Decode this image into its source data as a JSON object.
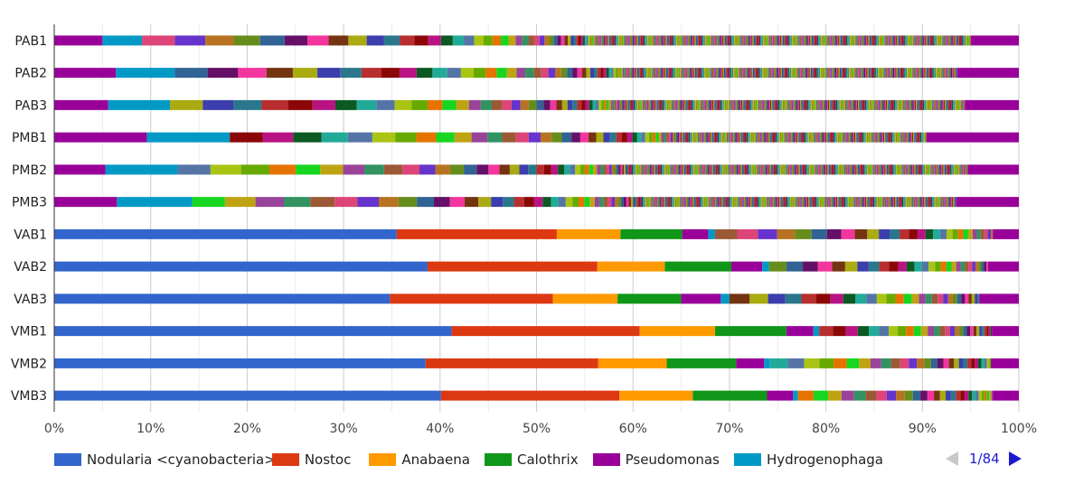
{
  "chart_data": {
    "type": "bar",
    "orientation": "horizontal",
    "stacked": true,
    "normalized": true,
    "categories": [
      "PAB1",
      "PAB2",
      "PAB3",
      "PMB1",
      "PMB2",
      "PMB3",
      "VAB1",
      "VAB2",
      "VAB3",
      "VMB1",
      "VMB2",
      "VMB3"
    ],
    "x_ticks": [
      "0%",
      "10%",
      "20%",
      "30%",
      "40%",
      "50%",
      "60%",
      "70%",
      "80%",
      "90%",
      "100%"
    ],
    "xlim": [
      0,
      100
    ],
    "grid": true,
    "legend_position": "bottom",
    "series": [
      {
        "name": "Nodularia <cyanobacteria>",
        "color": "#3366cc",
        "values": [
          0.0,
          0.0,
          0.0,
          0.0,
          0.0,
          0.0,
          35.5,
          38.7,
          34.8,
          41.2,
          38.5,
          40.1
        ]
      },
      {
        "name": "Nostoc",
        "color": "#dc3912",
        "values": [
          0.0,
          0.0,
          0.0,
          0.0,
          0.0,
          0.0,
          16.6,
          17.6,
          16.9,
          19.5,
          17.9,
          18.5
        ]
      },
      {
        "name": "Anabaena",
        "color": "#ff9900",
        "values": [
          0.0,
          0.0,
          0.0,
          0.0,
          0.0,
          0.0,
          6.6,
          7.0,
          6.7,
          7.8,
          7.1,
          7.6
        ]
      },
      {
        "name": "Calothrix",
        "color": "#109618",
        "values": [
          0.0,
          0.0,
          0.0,
          0.0,
          0.0,
          0.0,
          6.4,
          6.9,
          6.6,
          7.4,
          7.2,
          7.7
        ]
      },
      {
        "name": "Pseudomonas",
        "color": "#990099",
        "values": [
          5.0,
          6.4,
          5.6,
          9.6,
          5.3,
          6.5,
          2.7,
          3.2,
          4.1,
          2.8,
          2.9,
          2.7
        ]
      },
      {
        "name": "Hydrogenophaga",
        "color": "#0099c6",
        "values": [
          4.1,
          6.1,
          6.4,
          8.6,
          7.5,
          7.8,
          0.7,
          0.7,
          0.9,
          0.6,
          0.6,
          0.5
        ]
      }
    ],
    "other_segment_colors": [
      "#dd4477",
      "#66aa00",
      "#b82e2e",
      "#316395",
      "#994499",
      "#22aa99",
      "#aaaa11",
      "#6633cc",
      "#e67300",
      "#8b0707",
      "#651067",
      "#329262",
      "#5574a6",
      "#3b3eac",
      "#b77322",
      "#16d620",
      "#b91383",
      "#f4359e",
      "#9c5935",
      "#a9c413",
      "#2a778d",
      "#668d1c",
      "#bea413",
      "#0c5922",
      "#743411"
    ],
    "pager": {
      "text": "1/84"
    }
  }
}
